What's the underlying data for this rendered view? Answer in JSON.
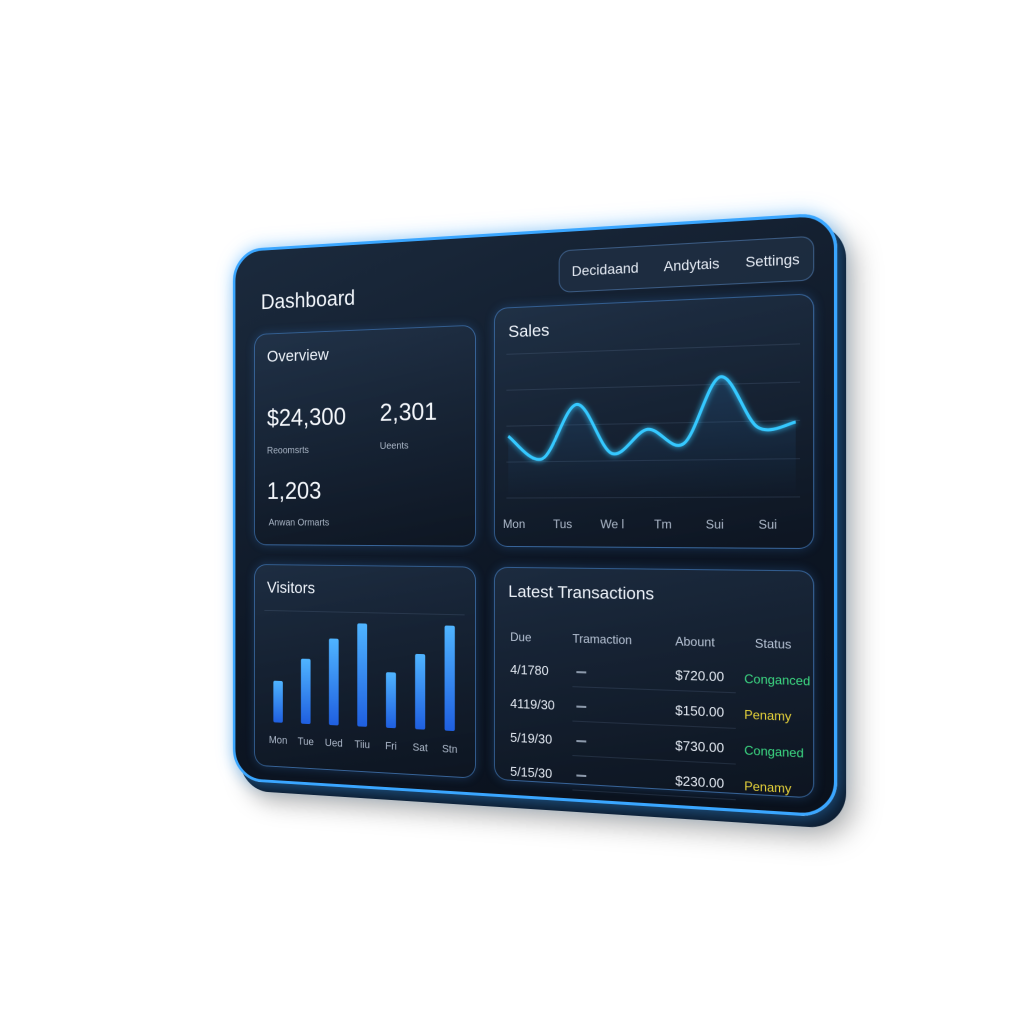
{
  "nav": {
    "tabs": [
      "Decidaand",
      "Andytais",
      "Settings"
    ]
  },
  "header": {
    "title": "Dashboard"
  },
  "overview": {
    "title": "Overview",
    "stats": [
      {
        "value": "$24,300",
        "label": "Reoomsrts"
      },
      {
        "value": "2,301",
        "label": "Ueents"
      },
      {
        "value": "1,203",
        "label": "Anwan Ormarts"
      }
    ]
  },
  "sales": {
    "title": "Sales",
    "x_labels": [
      "Mon",
      "Tus",
      "We l",
      "Tm",
      "Sui",
      "Sui"
    ],
    "values": [
      43,
      27,
      64,
      30,
      46,
      36,
      80,
      46,
      49
    ],
    "ylim": [
      0,
      100
    ],
    "color": "#35c8ff"
  },
  "visitors": {
    "title": "Visitors",
    "categories": [
      "Mon",
      "Tue",
      "Ued",
      "Tiiu",
      "Fri",
      "Sat",
      "Stn"
    ],
    "values": [
      40,
      62,
      82,
      97,
      52,
      70,
      97
    ],
    "ylim": [
      0,
      100
    ],
    "color": "#2f8cff"
  },
  "transactions": {
    "title": "Latest Transactions",
    "columns": [
      "Due",
      "Tramaction",
      "Abount",
      "Status"
    ],
    "rows": [
      {
        "date": "4/1780",
        "amount": "$720.00",
        "status": "Conganced",
        "status_color": "#3ddc84"
      },
      {
        "date": "4119/30",
        "amount": "$150.00",
        "status": "Penamy",
        "status_color": "#e8d43a"
      },
      {
        "date": "5/19/30",
        "amount": "$730.00",
        "status": "Conganed",
        "status_color": "#3ddc84"
      },
      {
        "date": "5/15/30",
        "amount": "$230.00",
        "status": "Penamy",
        "status_color": "#e8d43a"
      }
    ]
  }
}
